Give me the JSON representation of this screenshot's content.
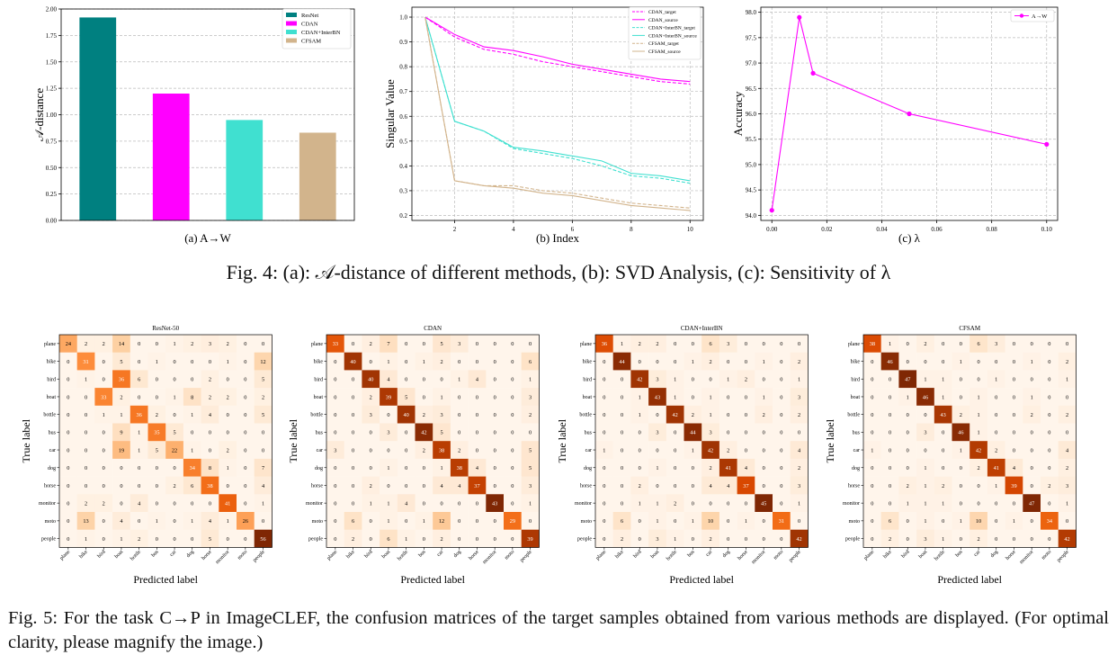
{
  "fig4": {
    "caption": "Fig. 4: (a): 𝒜-distance of different methods, (b): SVD Analysis, (c): Sensitivity of λ",
    "a": {
      "sublabel": "(a) A→W",
      "ylabel": "𝒜-distance"
    },
    "b": {
      "sublabel": "(b) Index",
      "ylabel": "Singular Value"
    },
    "c": {
      "sublabel": "(c) λ",
      "ylabel": "Accuracy"
    }
  },
  "fig5": {
    "caption": "Fig. 5: For the task C→P in ImageCLEF, the confusion matrices of the target samples obtained from various methods are displayed. (For optimal clarity, please magnify the image.)"
  },
  "colors": {
    "resnet": "#008080",
    "cdan": "#ff00ff",
    "interbn": "#40e0d0",
    "cfsam": "#d2b48c",
    "cm_low": "#fff5eb",
    "cm_high": "#7f2704"
  },
  "chart_data": [
    {
      "type": "bar",
      "categories": [
        "ResNet",
        "CDAN",
        "CDAN+InterBN",
        "CFSAM"
      ],
      "values": [
        1.92,
        1.2,
        0.95,
        0.83
      ],
      "series": [
        {
          "name": "ResNet"
        },
        {
          "name": "CDAN"
        },
        {
          "name": "CDAN+InterBN"
        },
        {
          "name": "CFSAM"
        }
      ],
      "ylim": [
        0,
        2.0
      ],
      "yticks": [
        "0.00",
        "0.25",
        "0.50",
        "0.75",
        "1.00",
        "1.25",
        "1.50",
        "1.75",
        "2.00"
      ],
      "ylabel": "𝒜-distance",
      "xlabel": "(a) A→W",
      "legend": "top-right",
      "grid": "y"
    },
    {
      "type": "line",
      "x": [
        1,
        2,
        3,
        4,
        5,
        6,
        7,
        8,
        9,
        10
      ],
      "xticks": [
        "2",
        "4",
        "6",
        "8",
        "10"
      ],
      "yticks": [
        "0.2",
        "0.3",
        "0.4",
        "0.5",
        "0.6",
        "0.7",
        "0.8",
        "0.9",
        "1.0"
      ],
      "ylim": [
        0.2,
        1.0
      ],
      "ylabel": "Singular Value",
      "xlabel": "(b) Index",
      "legend": "top-right",
      "grid": "both",
      "series": [
        {
          "name": "CDAN_target",
          "style": "dashed",
          "color": "#ff00ff",
          "values": [
            1.0,
            0.92,
            0.87,
            0.85,
            0.82,
            0.8,
            0.78,
            0.76,
            0.74,
            0.73
          ]
        },
        {
          "name": "CDAN_source",
          "style": "solid",
          "color": "#ff00ff",
          "values": [
            1.0,
            0.93,
            0.88,
            0.865,
            0.84,
            0.81,
            0.79,
            0.77,
            0.75,
            0.74
          ]
        },
        {
          "name": "CDAN+InterBN_target",
          "style": "dashed",
          "color": "#40e0d0",
          "values": [
            1.0,
            0.58,
            0.54,
            0.47,
            0.45,
            0.43,
            0.4,
            0.36,
            0.35,
            0.33
          ]
        },
        {
          "name": "CDAN+InterBN_source",
          "style": "solid",
          "color": "#40e0d0",
          "values": [
            1.0,
            0.58,
            0.54,
            0.475,
            0.46,
            0.44,
            0.42,
            0.37,
            0.36,
            0.34
          ]
        },
        {
          "name": "CFSAM_target",
          "style": "dashed",
          "color": "#d2b48c",
          "values": [
            1.0,
            0.34,
            0.32,
            0.32,
            0.3,
            0.29,
            0.27,
            0.25,
            0.24,
            0.23
          ]
        },
        {
          "name": "CFSAM_source",
          "style": "solid",
          "color": "#d2b48c",
          "values": [
            1.0,
            0.34,
            0.32,
            0.31,
            0.29,
            0.28,
            0.26,
            0.24,
            0.23,
            0.22
          ]
        }
      ]
    },
    {
      "type": "line",
      "x": [
        0.0,
        0.01,
        0.015,
        0.05,
        0.1
      ],
      "xticks": [
        "0.00",
        "0.02",
        "0.04",
        "0.06",
        "0.08",
        "0.10"
      ],
      "yticks": [
        "94.0",
        "94.5",
        "95.0",
        "95.5",
        "96.0",
        "96.5",
        "97.0",
        "97.5",
        "98.0"
      ],
      "xlim": [
        -0.004,
        0.104
      ],
      "ylim": [
        94.0,
        98.0
      ],
      "ylabel": "Accuracy",
      "xlabel": "(c) λ",
      "legend": "top-right",
      "grid": "both",
      "series": [
        {
          "name": "A→W",
          "color": "#ff00ff",
          "values": [
            94.1,
            97.9,
            96.8,
            96.0,
            95.4
          ]
        }
      ]
    },
    {
      "type": "heatmap",
      "title": "ResNet-50",
      "xlabel": "Predicted label",
      "ylabel": "True label",
      "labels": [
        "plane",
        "bike",
        "bird",
        "boat",
        "bottle",
        "bus",
        "car",
        "dog",
        "horse",
        "monitor",
        "moto",
        "people"
      ],
      "matrix": [
        [
          24,
          2,
          2,
          14,
          0,
          0,
          1,
          2,
          3,
          2,
          0,
          0
        ],
        [
          0,
          31,
          0,
          5,
          0,
          1,
          0,
          0,
          0,
          1,
          0,
          12
        ],
        [
          0,
          1,
          0,
          36,
          6,
          0,
          0,
          0,
          2,
          0,
          0,
          5
        ],
        [
          0,
          0,
          33,
          2,
          0,
          0,
          1,
          8,
          2,
          2,
          0,
          2
        ],
        [
          0,
          0,
          1,
          1,
          36,
          2,
          0,
          1,
          4,
          0,
          0,
          5
        ],
        [
          0,
          0,
          0,
          9,
          1,
          35,
          5,
          0,
          0,
          0,
          0,
          0
        ],
        [
          0,
          0,
          0,
          19,
          1,
          5,
          22,
          1,
          0,
          2,
          0,
          0
        ],
        [
          0,
          0,
          0,
          0,
          0,
          0,
          0,
          34,
          8,
          1,
          0,
          7
        ],
        [
          0,
          0,
          0,
          0,
          0,
          0,
          2,
          6,
          38,
          0,
          0,
          4
        ],
        [
          0,
          2,
          2,
          0,
          4,
          0,
          0,
          0,
          0,
          41,
          0,
          1
        ],
        [
          0,
          13,
          0,
          4,
          0,
          1,
          0,
          1,
          4,
          1,
          26,
          0
        ],
        [
          0,
          1,
          0,
          1,
          2,
          0,
          0,
          0,
          5,
          0,
          0,
          56
        ]
      ]
    },
    {
      "type": "heatmap",
      "title": "CDAN",
      "xlabel": "Predicted label",
      "ylabel": "True label",
      "labels": [
        "plane",
        "bike",
        "bird",
        "boat",
        "bottle",
        "bus",
        "car",
        "dog",
        "horse",
        "monitor",
        "moto",
        "people"
      ],
      "matrix": [
        [
          33,
          0,
          2,
          7,
          0,
          0,
          5,
          3,
          0,
          0,
          0,
          0
        ],
        [
          0,
          40,
          0,
          1,
          0,
          1,
          2,
          0,
          0,
          0,
          0,
          6
        ],
        [
          0,
          0,
          40,
          4,
          0,
          0,
          0,
          1,
          4,
          0,
          0,
          1
        ],
        [
          0,
          0,
          2,
          39,
          5,
          0,
          1,
          0,
          0,
          0,
          0,
          3
        ],
        [
          0,
          0,
          3,
          0,
          40,
          2,
          3,
          0,
          0,
          0,
          0,
          2
        ],
        [
          0,
          0,
          0,
          3,
          0,
          42,
          5,
          0,
          0,
          0,
          0,
          0
        ],
        [
          3,
          0,
          0,
          0,
          0,
          2,
          38,
          2,
          0,
          0,
          0,
          5
        ],
        [
          0,
          0,
          0,
          1,
          0,
          0,
          1,
          38,
          4,
          0,
          0,
          5
        ],
        [
          0,
          0,
          2,
          0,
          0,
          0,
          4,
          4,
          37,
          0,
          0,
          3
        ],
        [
          0,
          0,
          1,
          1,
          4,
          0,
          0,
          0,
          0,
          43,
          0,
          1
        ],
        [
          0,
          6,
          0,
          1,
          0,
          1,
          12,
          0,
          0,
          0,
          29,
          0
        ],
        [
          0,
          2,
          0,
          6,
          1,
          0,
          2,
          0,
          0,
          0,
          0,
          39
        ]
      ]
    },
    {
      "type": "heatmap",
      "title": "CDAN+InterBN",
      "xlabel": "Predicted label",
      "ylabel": "True label",
      "labels": [
        "plane",
        "bike",
        "bird",
        "boat",
        "bottle",
        "bus",
        "car",
        "dog",
        "horse",
        "monitor",
        "moto",
        "people"
      ],
      "matrix": [
        [
          36,
          1,
          2,
          2,
          0,
          0,
          6,
          3,
          0,
          0,
          0,
          0
        ],
        [
          0,
          44,
          0,
          0,
          0,
          1,
          2,
          0,
          0,
          1,
          0,
          2
        ],
        [
          0,
          0,
          42,
          3,
          1,
          0,
          0,
          1,
          2,
          0,
          0,
          1
        ],
        [
          0,
          0,
          1,
          43,
          1,
          0,
          1,
          0,
          0,
          1,
          0,
          3
        ],
        [
          0,
          0,
          1,
          0,
          42,
          2,
          1,
          0,
          0,
          2,
          0,
          2
        ],
        [
          0,
          0,
          0,
          3,
          0,
          44,
          3,
          0,
          0,
          0,
          0,
          0
        ],
        [
          1,
          0,
          0,
          0,
          0,
          1,
          42,
          2,
          0,
          0,
          0,
          4
        ],
        [
          0,
          0,
          0,
          1,
          0,
          0,
          2,
          41,
          4,
          0,
          0,
          2
        ],
        [
          0,
          0,
          2,
          0,
          0,
          0,
          4,
          4,
          37,
          0,
          0,
          3
        ],
        [
          0,
          0,
          1,
          1,
          2,
          0,
          0,
          0,
          0,
          45,
          0,
          1
        ],
        [
          0,
          6,
          0,
          1,
          0,
          1,
          10,
          0,
          1,
          0,
          31,
          0
        ],
        [
          0,
          2,
          0,
          3,
          1,
          0,
          2,
          0,
          0,
          0,
          0,
          42
        ]
      ]
    },
    {
      "type": "heatmap",
      "title": "CFSAM",
      "xlabel": "Predicted label",
      "ylabel": "True label",
      "labels": [
        "plane",
        "bike",
        "bird",
        "boat",
        "bottle",
        "bus",
        "car",
        "dog",
        "horse",
        "monitor",
        "moto",
        "people"
      ],
      "matrix": [
        [
          38,
          1,
          0,
          2,
          0,
          0,
          6,
          3,
          0,
          0,
          0,
          0
        ],
        [
          0,
          46,
          0,
          0,
          0,
          1,
          0,
          0,
          0,
          1,
          0,
          2
        ],
        [
          0,
          0,
          47,
          1,
          1,
          0,
          0,
          1,
          0,
          0,
          0,
          1
        ],
        [
          0,
          0,
          1,
          46,
          1,
          0,
          1,
          0,
          0,
          1,
          0,
          0
        ],
        [
          0,
          0,
          0,
          0,
          43,
          2,
          1,
          0,
          0,
          2,
          0,
          2
        ],
        [
          0,
          0,
          0,
          3,
          0,
          46,
          1,
          0,
          0,
          0,
          0,
          0
        ],
        [
          1,
          0,
          0,
          0,
          0,
          1,
          42,
          2,
          0,
          0,
          0,
          4
        ],
        [
          0,
          0,
          0,
          1,
          0,
          0,
          2,
          41,
          4,
          0,
          0,
          2
        ],
        [
          0,
          0,
          2,
          1,
          2,
          0,
          0,
          1,
          39,
          0,
          2,
          3
        ],
        [
          0,
          0,
          1,
          1,
          1,
          0,
          0,
          0,
          0,
          47,
          0,
          1
        ],
        [
          0,
          6,
          0,
          1,
          0,
          1,
          10,
          0,
          1,
          0,
          34,
          0
        ],
        [
          0,
          2,
          0,
          3,
          1,
          0,
          2,
          0,
          0,
          0,
          0,
          42
        ]
      ]
    }
  ]
}
